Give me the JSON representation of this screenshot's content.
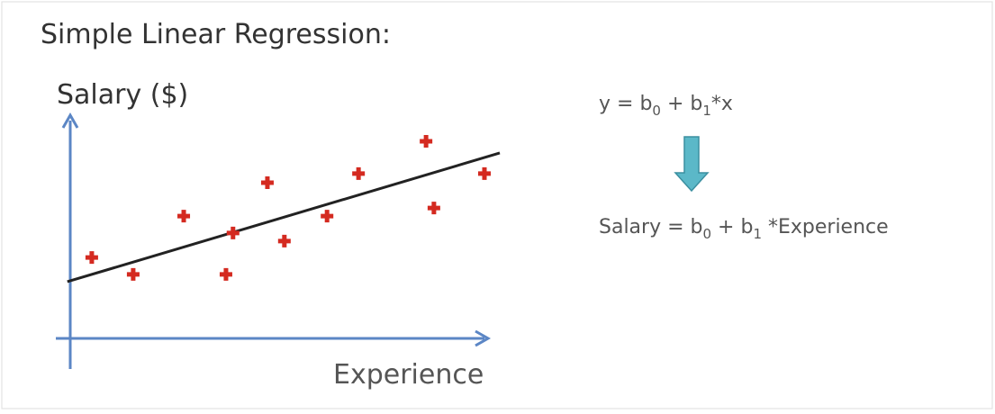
{
  "slide_title": "Simple Linear Regression:",
  "chart_data": {
    "type": "scatter",
    "y_label": "Salary ($)",
    "x_label": "Experience",
    "x": [
      0.52,
      1.52,
      2.74,
      3.76,
      3.93,
      4.76,
      5.17,
      6.2,
      6.96,
      8.59,
      8.78,
      10.0
    ],
    "y": [
      3.91,
      3.09,
      5.91,
      3.09,
      5.09,
      7.52,
      4.7,
      5.91,
      7.96,
      9.52,
      6.3,
      7.96
    ],
    "color": "#d42a20",
    "xlim": [
      0,
      10
    ],
    "ylim": [
      0,
      10
    ],
    "trend_line": {
      "x": [
        -0.07,
        10.37
      ],
      "y": [
        2.74,
        8.96
      ]
    }
  },
  "equations": [
    {
      "parts": [
        "y = b",
        "0",
        " + b",
        "1",
        "*x"
      ]
    },
    {
      "parts": [
        "Salary = b",
        "0",
        " + b",
        "1",
        "  *Experience"
      ]
    }
  ]
}
